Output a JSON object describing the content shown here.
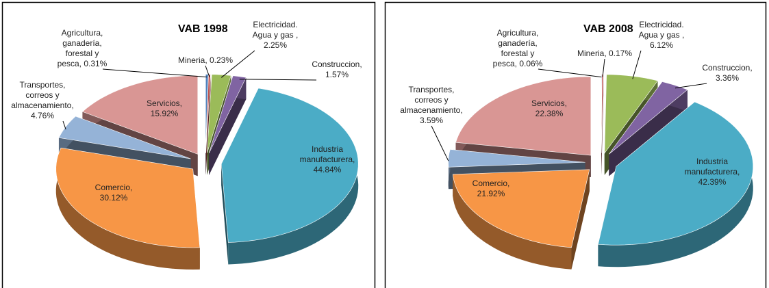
{
  "chart_data": [
    {
      "type": "pie3d",
      "title": "VAB 1998",
      "values": [
        0.31,
        0.23,
        2.25,
        1.57,
        44.84,
        30.12,
        4.76,
        15.92
      ],
      "value_labels": [
        "Agricultura, ganadería, forestal y pesca, 0.31%",
        "Mineria, 0.23%",
        "Electricidad. Agua y gas , 2.25%",
        "Construccion, 1.57%",
        "Industria manufacturera, 44.84%",
        "Comercio, 30.12%",
        "Transportes, correos y almacenamiento, 4.76%",
        "Servicios, 15.92%"
      ],
      "colors": [
        "#4f81bd",
        "#c0504d",
        "#9bbb59",
        "#8064a2",
        "#4bacc6",
        "#f79646",
        "#95b3d7",
        "#d99694"
      ]
    },
    {
      "type": "pie3d",
      "title": "VAB 2008",
      "values": [
        0.06,
        0.17,
        6.12,
        3.36,
        42.39,
        21.92,
        3.59,
        22.38
      ],
      "value_labels": [
        "Agricultura, ganadería, forestal y pesca, 0.06%",
        "Mineria, 0.17%",
        "Electricidad. Agua y gas , 6.12%",
        "Construccion, 3.36%",
        "Industria manufacturera, 42.39%",
        "Comercio, 21.92%",
        "Transportes, correos y almacenamiento, 3.59%",
        "Servicios, 22.38%"
      ],
      "colors": [
        "#4f81bd",
        "#c0504d",
        "#9bbb59",
        "#8064a2",
        "#4bacc6",
        "#f79646",
        "#95b3d7",
        "#d99694"
      ]
    }
  ]
}
